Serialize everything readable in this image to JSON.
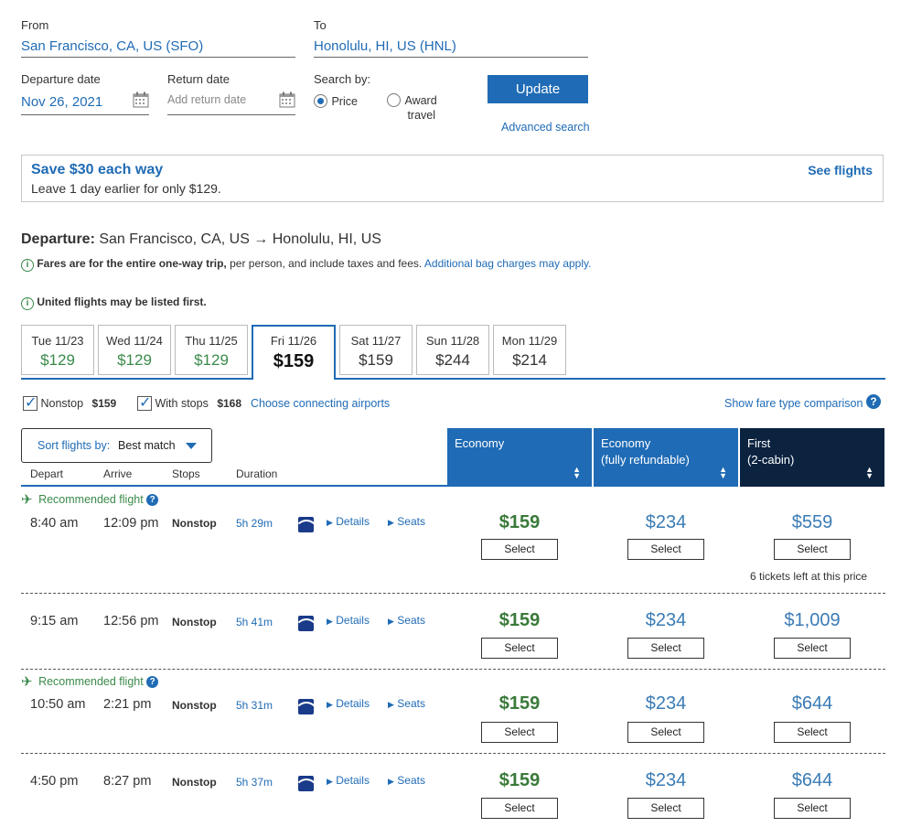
{
  "search": {
    "from_label": "From",
    "from_value": "San Francisco, CA, US (SFO)",
    "to_label": "To",
    "to_value": "Honolulu, HI, US (HNL)",
    "departure_label": "Departure date",
    "departure_value": "Nov 26, 2021",
    "return_label": "Return date",
    "return_placeholder": "Add return date",
    "search_by_label": "Search by:",
    "price_label": "Price",
    "award_label_1": "Award",
    "award_label_2": "travel",
    "update_label": "Update",
    "advanced_label": "Advanced search"
  },
  "banner": {
    "title": "Save $30 each way",
    "text": "Leave 1 day earlier for only $129.",
    "link": "See flights"
  },
  "departure": {
    "label": "Departure:",
    "route": "San Francisco, CA, US → Honolulu, HI, US",
    "fares_note": "Fares are for the entire one-way trip,",
    "fares_note_2": "per person, and include taxes and fees.",
    "bag_link": "Additional bag charges may apply.",
    "united_note": "United flights may be listed first."
  },
  "dates": [
    {
      "day": "Tue 11/23",
      "price": "$129"
    },
    {
      "day": "Wed 11/24",
      "price": "$129"
    },
    {
      "day": "Thu 11/25",
      "price": "$129"
    },
    {
      "day": "Fri 11/26",
      "price": "$159"
    },
    {
      "day": "Sat 11/27",
      "price": "$159"
    },
    {
      "day": "Sun 11/28",
      "price": "$244"
    },
    {
      "day": "Mon 11/29",
      "price": "$214"
    }
  ],
  "filters": {
    "nonstop_label": "Nonstop",
    "nonstop_price": "$159",
    "withstops_label": "With stops",
    "withstops_price": "$168",
    "connecting_link": "Choose connecting airports",
    "fare_compare_link": "Show fare type comparison"
  },
  "sort": {
    "label": "Sort flights by:",
    "value": "Best match"
  },
  "columns": {
    "depart": "Depart",
    "arrive": "Arrive",
    "stops": "Stops",
    "duration": "Duration",
    "economy": "Economy",
    "economy_ref_1": "Economy",
    "economy_ref_2": "(fully refundable)",
    "first_1": "First",
    "first_2": "(2-cabin)"
  },
  "common": {
    "recommended": "Recommended flight",
    "details": "Details",
    "seats": "Seats",
    "select": "Select"
  },
  "flights": [
    {
      "depart": "8:40 am",
      "arrive": "12:09 pm",
      "stops": "Nonstop",
      "duration": "5h 29m",
      "economy": "$159",
      "refundable": "$234",
      "first": "$559",
      "note": "6 tickets left at this price"
    },
    {
      "depart": "9:15 am",
      "arrive": "12:56 pm",
      "stops": "Nonstop",
      "duration": "5h 41m",
      "economy": "$159",
      "refundable": "$234",
      "first": "$1,009"
    },
    {
      "depart": "10:50 am",
      "arrive": "2:21 pm",
      "stops": "Nonstop",
      "duration": "5h 31m",
      "economy": "$159",
      "refundable": "$234",
      "first": "$644"
    },
    {
      "depart": "4:50 pm",
      "arrive": "8:27 pm",
      "stops": "Nonstop",
      "duration": "5h 37m",
      "economy": "$159",
      "refundable": "$234",
      "first": "$644"
    }
  ],
  "colors": {
    "brand_blue": "#1f6bb5",
    "dark_navy": "#0c2340",
    "price_green": "#3a7a3a"
  }
}
